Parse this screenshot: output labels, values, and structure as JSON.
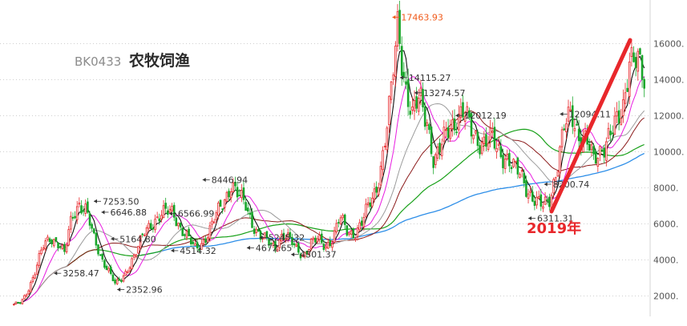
{
  "chart_data": {
    "type": "candlestick",
    "title_code": "BK0433",
    "title_name": "农牧饲渔",
    "ylim": [
      1000,
      17800
    ],
    "y_ticks": [
      "2000.",
      "4000.",
      "6000.",
      "8000.",
      "10000.",
      "12000.",
      "14000.",
      "16000."
    ],
    "y_tick_values": [
      2000,
      4000,
      6000,
      8000,
      10000,
      12000,
      14000,
      16000
    ],
    "grid": true,
    "colors": {
      "up": "#e8272b",
      "down": "#18a62a",
      "ma_short": "#111111",
      "ma_mid": "#e81de0",
      "ma_long1": "#9b9b9b",
      "ma_long2": "#8b1a1a",
      "ma_green": "#19a11a",
      "ma_blue": "#2d8ee8",
      "peak_label": "#f05a1a",
      "arrow": "#e8272b"
    },
    "annotations": [
      {
        "text": "17463.93",
        "value": 17463.93,
        "t": 0.6,
        "highlight": true
      },
      {
        "text": "14115.27",
        "value": 14115.27,
        "t": 0.612
      },
      {
        "text": "13274.57",
        "value": 13274.57,
        "t": 0.635
      },
      {
        "text": "12012.19",
        "value": 12012.19,
        "t": 0.7
      },
      {
        "text": "8446.94",
        "value": 8446.94,
        "t": 0.3
      },
      {
        "text": "7253.50",
        "value": 7253.5,
        "t": 0.128
      },
      {
        "text": "6646.88",
        "value": 6646.88,
        "t": 0.14
      },
      {
        "text": "6566.99",
        "value": 6566.99,
        "t": 0.247
      },
      {
        "text": "5245.32",
        "value": 5245.32,
        "t": 0.39
      },
      {
        "text": "5164.80",
        "value": 5164.8,
        "t": 0.155
      },
      {
        "text": "4514.32",
        "value": 4514.32,
        "t": 0.25
      },
      {
        "text": "4672.65",
        "value": 4672.65,
        "t": 0.37
      },
      {
        "text": "4301.37",
        "value": 4301.37,
        "t": 0.44
      },
      {
        "text": "3258.47",
        "value": 3258.47,
        "t": 0.065
      },
      {
        "text": "2352.96",
        "value": 2352.96,
        "t": 0.165
      },
      {
        "text": "6311.31",
        "value": 6311.31,
        "t": 0.815
      },
      {
        "text": "12094.11",
        "value": 12094.11,
        "t": 0.865
      },
      {
        "text": "8200.74",
        "value": 8200.74,
        "t": 0.84
      }
    ],
    "marker_text": "2019年",
    "series": [
      {
        "role": "index",
        "values": [
          1500,
          1650,
          2400,
          3400,
          4700,
          5300,
          5000,
          4300,
          6400,
          7200,
          6700,
          5200,
          4200,
          3500,
          2600,
          3000,
          3800,
          4500,
          5500,
          6100,
          6400,
          6600,
          6700,
          5800,
          5200,
          4600,
          5000,
          5600,
          6500,
          7300,
          8300,
          7500,
          7000,
          6000,
          5300,
          5000,
          4700,
          5400,
          5100,
          4600,
          4300,
          4900,
          5100,
          4800,
          5200,
          6300,
          5600,
          5500,
          6000,
          7000,
          8000,
          10000,
          12800,
          17300,
          13800,
          11800,
          13000,
          12000,
          9300,
          10200,
          11500,
          11800,
          12000,
          11400,
          10800,
          10400,
          10600,
          10100,
          9700,
          9000,
          8700,
          7900,
          7200,
          6900,
          7500,
          9300,
          11300,
          12100,
          11000,
          10600,
          9400,
          10200,
          10900,
          11300,
          12200,
          15600,
          15000,
          13600
        ]
      }
    ]
  }
}
